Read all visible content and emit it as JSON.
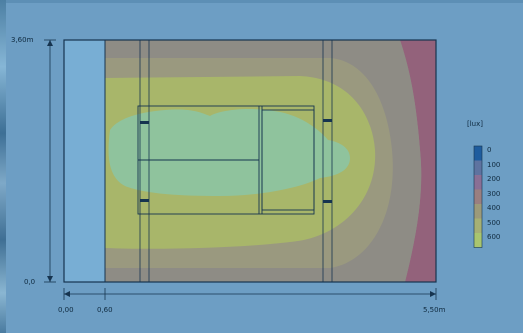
{
  "dimensions": {
    "height_top": "3,60m",
    "height_bottom": "0,0",
    "width_start": "0,00",
    "width_split": "0,60",
    "width_end": "5,50m"
  },
  "legend": {
    "unit": "[lux]",
    "levels": [
      {
        "value": "0",
        "color": "#1e5c9e"
      },
      {
        "value": "100",
        "color": "#5e73a0"
      },
      {
        "value": "200",
        "color": "#8a6f95"
      },
      {
        "value": "300",
        "color": "#9a7f80"
      },
      {
        "value": "400",
        "color": "#9c9a7a"
      },
      {
        "value": "500",
        "color": "#a6b074"
      },
      {
        "value": "600",
        "color": "#a9c56f"
      }
    ]
  },
  "colors": {
    "background": "#6d9ec4",
    "window_area": "#78aed4",
    "iso_300": "#8c8a86",
    "iso_400": "#9b9a80",
    "iso_500": "#a9b56a",
    "iso_600": "#8fc39e",
    "iso_200": "#94607a"
  }
}
